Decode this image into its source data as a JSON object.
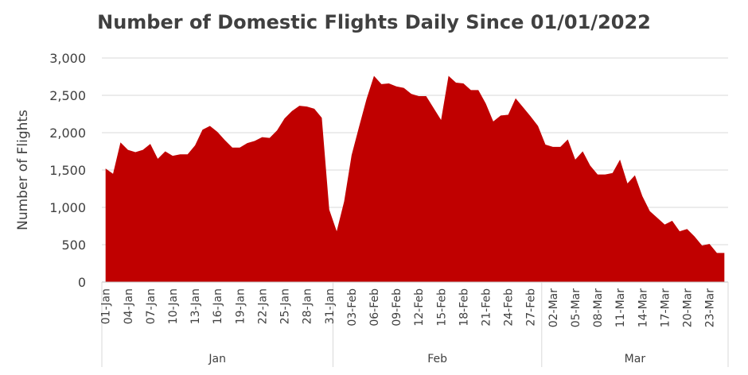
{
  "chart_data": {
    "type": "area",
    "title": "Number of Domestic Flights Daily Since 01/01/2022",
    "xlabel": "",
    "ylabel": "Number of Flights",
    "ylim": [
      0,
      3000
    ],
    "yticks": [
      "0",
      "500",
      "1,000",
      "1,500",
      "2,000",
      "2,500",
      "3,000"
    ],
    "grid": true,
    "color": "#C00000",
    "x_tick_labels": [
      "01-Jan",
      "04-Jan",
      "07-Jan",
      "10-Jan",
      "13-Jan",
      "16-Jan",
      "19-Jan",
      "22-Jan",
      "25-Jan",
      "28-Jan",
      "31-Jan",
      "03-Feb",
      "06-Feb",
      "09-Feb",
      "12-Feb",
      "15-Feb",
      "18-Feb",
      "21-Feb",
      "24-Feb",
      "27-Feb",
      "02-Mar",
      "05-Mar",
      "08-Mar",
      "11-Mar",
      "14-Mar",
      "17-Mar",
      "20-Mar",
      "23-Mar"
    ],
    "months": [
      {
        "label": "Jan",
        "start_day": 1,
        "end_day": 31
      },
      {
        "label": "Feb",
        "start_day": 32,
        "end_day": 59
      },
      {
        "label": "Mar",
        "start_day": 60,
        "end_day": 84
      }
    ],
    "x": [
      "01-Jan",
      "02-Jan",
      "03-Jan",
      "04-Jan",
      "05-Jan",
      "06-Jan",
      "07-Jan",
      "08-Jan",
      "09-Jan",
      "10-Jan",
      "11-Jan",
      "12-Jan",
      "13-Jan",
      "14-Jan",
      "15-Jan",
      "16-Jan",
      "17-Jan",
      "18-Jan",
      "19-Jan",
      "20-Jan",
      "21-Jan",
      "22-Jan",
      "23-Jan",
      "24-Jan",
      "25-Jan",
      "26-Jan",
      "27-Jan",
      "28-Jan",
      "29-Jan",
      "30-Jan",
      "31-Jan",
      "01-Feb",
      "02-Feb",
      "03-Feb",
      "04-Feb",
      "05-Feb",
      "06-Feb",
      "07-Feb",
      "08-Feb",
      "09-Feb",
      "10-Feb",
      "11-Feb",
      "12-Feb",
      "13-Feb",
      "14-Feb",
      "15-Feb",
      "16-Feb",
      "17-Feb",
      "18-Feb",
      "19-Feb",
      "20-Feb",
      "21-Feb",
      "22-Feb",
      "23-Feb",
      "24-Feb",
      "25-Feb",
      "26-Feb",
      "27-Feb",
      "28-Feb",
      "01-Mar",
      "02-Mar",
      "03-Mar",
      "04-Mar",
      "05-Mar",
      "06-Mar",
      "07-Mar",
      "08-Mar",
      "09-Mar",
      "10-Mar",
      "11-Mar",
      "12-Mar",
      "13-Mar",
      "14-Mar",
      "15-Mar",
      "16-Mar",
      "17-Mar",
      "18-Mar",
      "19-Mar",
      "20-Mar",
      "21-Mar",
      "22-Mar",
      "23-Mar",
      "24-Mar",
      "25-Mar"
    ],
    "values": [
      1520,
      1450,
      1870,
      1770,
      1740,
      1770,
      1850,
      1650,
      1750,
      1690,
      1710,
      1710,
      1830,
      2040,
      2090,
      2010,
      1900,
      1800,
      1800,
      1860,
      1890,
      1940,
      1930,
      2030,
      2190,
      2290,
      2360,
      2350,
      2320,
      2200,
      970,
      680,
      1080,
      1700,
      2080,
      2450,
      2760,
      2650,
      2660,
      2620,
      2600,
      2520,
      2490,
      2490,
      2330,
      2170,
      2760,
      2670,
      2660,
      2570,
      2570,
      2390,
      2150,
      2230,
      2240,
      2460,
      2340,
      2220,
      2090,
      1840,
      1810,
      1810,
      1910,
      1640,
      1750,
      1560,
      1440,
      1440,
      1460,
      1640,
      1320,
      1430,
      1150,
      950,
      860,
      770,
      820,
      680,
      710,
      610,
      490,
      510,
      390,
      390
    ]
  }
}
